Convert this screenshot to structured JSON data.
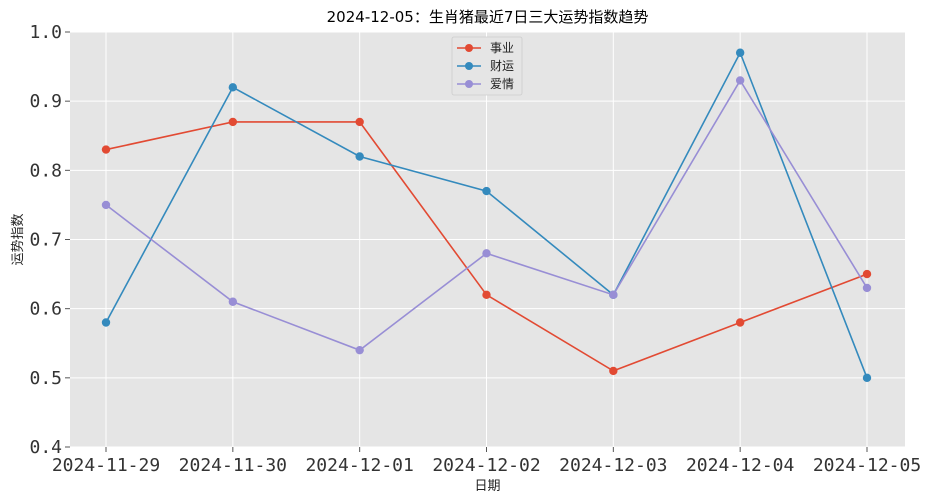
{
  "chart_data": {
    "type": "line",
    "title": "2024-12-05：生肖猪最近7日三大运势指数趋势",
    "xlabel": "日期",
    "ylabel": "运势指数",
    "categories": [
      "2024-11-29",
      "2024-11-30",
      "2024-12-01",
      "2024-12-02",
      "2024-12-03",
      "2024-12-04",
      "2024-12-05"
    ],
    "ylim": [
      0.4,
      1.0
    ],
    "yticks": [
      0.4,
      0.5,
      0.6,
      0.7,
      0.8,
      0.9,
      1.0
    ],
    "ytick_labels": [
      "0.4",
      "0.5",
      "0.6",
      "0.7",
      "0.8",
      "0.9",
      "1.0"
    ],
    "grid": true,
    "legend_position": "top-center",
    "colors": {
      "background": "#e5e5e5",
      "grid": "#ffffff"
    },
    "series": [
      {
        "name": "事业",
        "color": "#e24a33",
        "values": [
          0.83,
          0.87,
          0.87,
          0.62,
          0.51,
          0.58,
          0.65
        ]
      },
      {
        "name": "财运",
        "color": "#348abd",
        "values": [
          0.58,
          0.92,
          0.82,
          0.77,
          0.62,
          0.97,
          0.5
        ]
      },
      {
        "name": "爱情",
        "color": "#988ed5",
        "values": [
          0.75,
          0.61,
          0.54,
          0.68,
          0.62,
          0.93,
          0.63
        ]
      }
    ]
  }
}
